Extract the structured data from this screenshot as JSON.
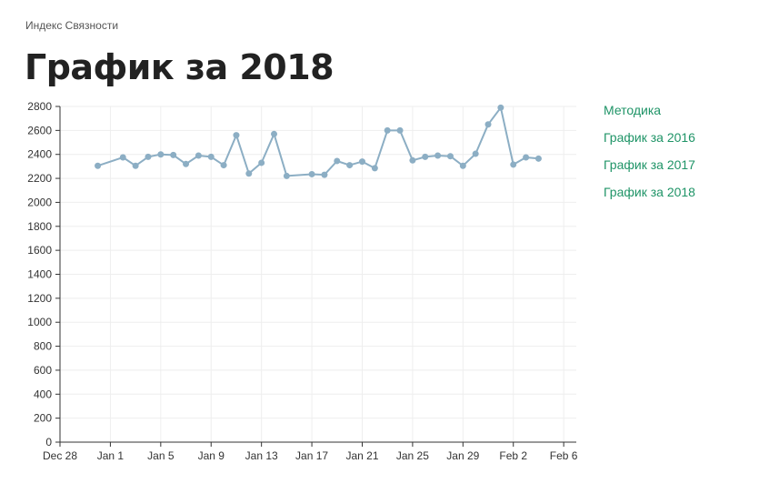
{
  "header": {
    "site_name": "Индекс Связности",
    "title": "График за 2018"
  },
  "nav": {
    "items": [
      {
        "label": "Методика"
      },
      {
        "label": "График за 2016"
      },
      {
        "label": "График за 2017"
      },
      {
        "label": "График за 2018"
      }
    ]
  },
  "colors": {
    "series": "#8caec4",
    "grid": "#eeeeee",
    "axis": "#333333",
    "link": "#1f9467"
  },
  "chart_data": {
    "type": "line",
    "title": "",
    "xlabel": "",
    "ylabel": "",
    "grid": true,
    "xlim": [
      "2017-12-28",
      "2018-02-07"
    ],
    "ylim": [
      0,
      2800
    ],
    "x_ticks": [
      "Dec 28",
      "Jan 1",
      "Jan 5",
      "Jan 9",
      "Jan 13",
      "Jan 17",
      "Jan 21",
      "Jan 25",
      "Jan 29",
      "Feb 2",
      "Feb 6"
    ],
    "y_ticks": [
      "0",
      "200",
      "400",
      "600",
      "800",
      "1000",
      "1200",
      "1400",
      "1600",
      "1800",
      "2000",
      "2200",
      "2400",
      "2600",
      "2800"
    ],
    "series": [
      {
        "x": [
          "2017-12-31",
          "2018-01-02",
          "2018-01-03",
          "2018-01-04",
          "2018-01-05",
          "2018-01-06",
          "2018-01-07",
          "2018-01-08",
          "2018-01-09",
          "2018-01-10",
          "2018-01-11",
          "2018-01-12",
          "2018-01-13",
          "2018-01-14",
          "2018-01-15",
          "2018-01-17",
          "2018-01-18",
          "2018-01-19",
          "2018-01-20",
          "2018-01-21",
          "2018-01-22",
          "2018-01-23",
          "2018-01-24",
          "2018-01-25",
          "2018-01-26",
          "2018-01-27",
          "2018-01-28",
          "2018-01-29",
          "2018-01-30",
          "2018-01-31",
          "2018-02-01",
          "2018-02-02",
          "2018-02-03",
          "2018-02-04"
        ],
        "values": [
          2305,
          2375,
          2305,
          2380,
          2400,
          2395,
          2320,
          2390,
          2380,
          2310,
          2560,
          2240,
          2330,
          2570,
          2220,
          2235,
          2230,
          2345,
          2310,
          2340,
          2285,
          2600,
          2600,
          2350,
          2380,
          2390,
          2385,
          2305,
          2405,
          2650,
          2790,
          2315,
          2375,
          2365
        ]
      }
    ]
  }
}
